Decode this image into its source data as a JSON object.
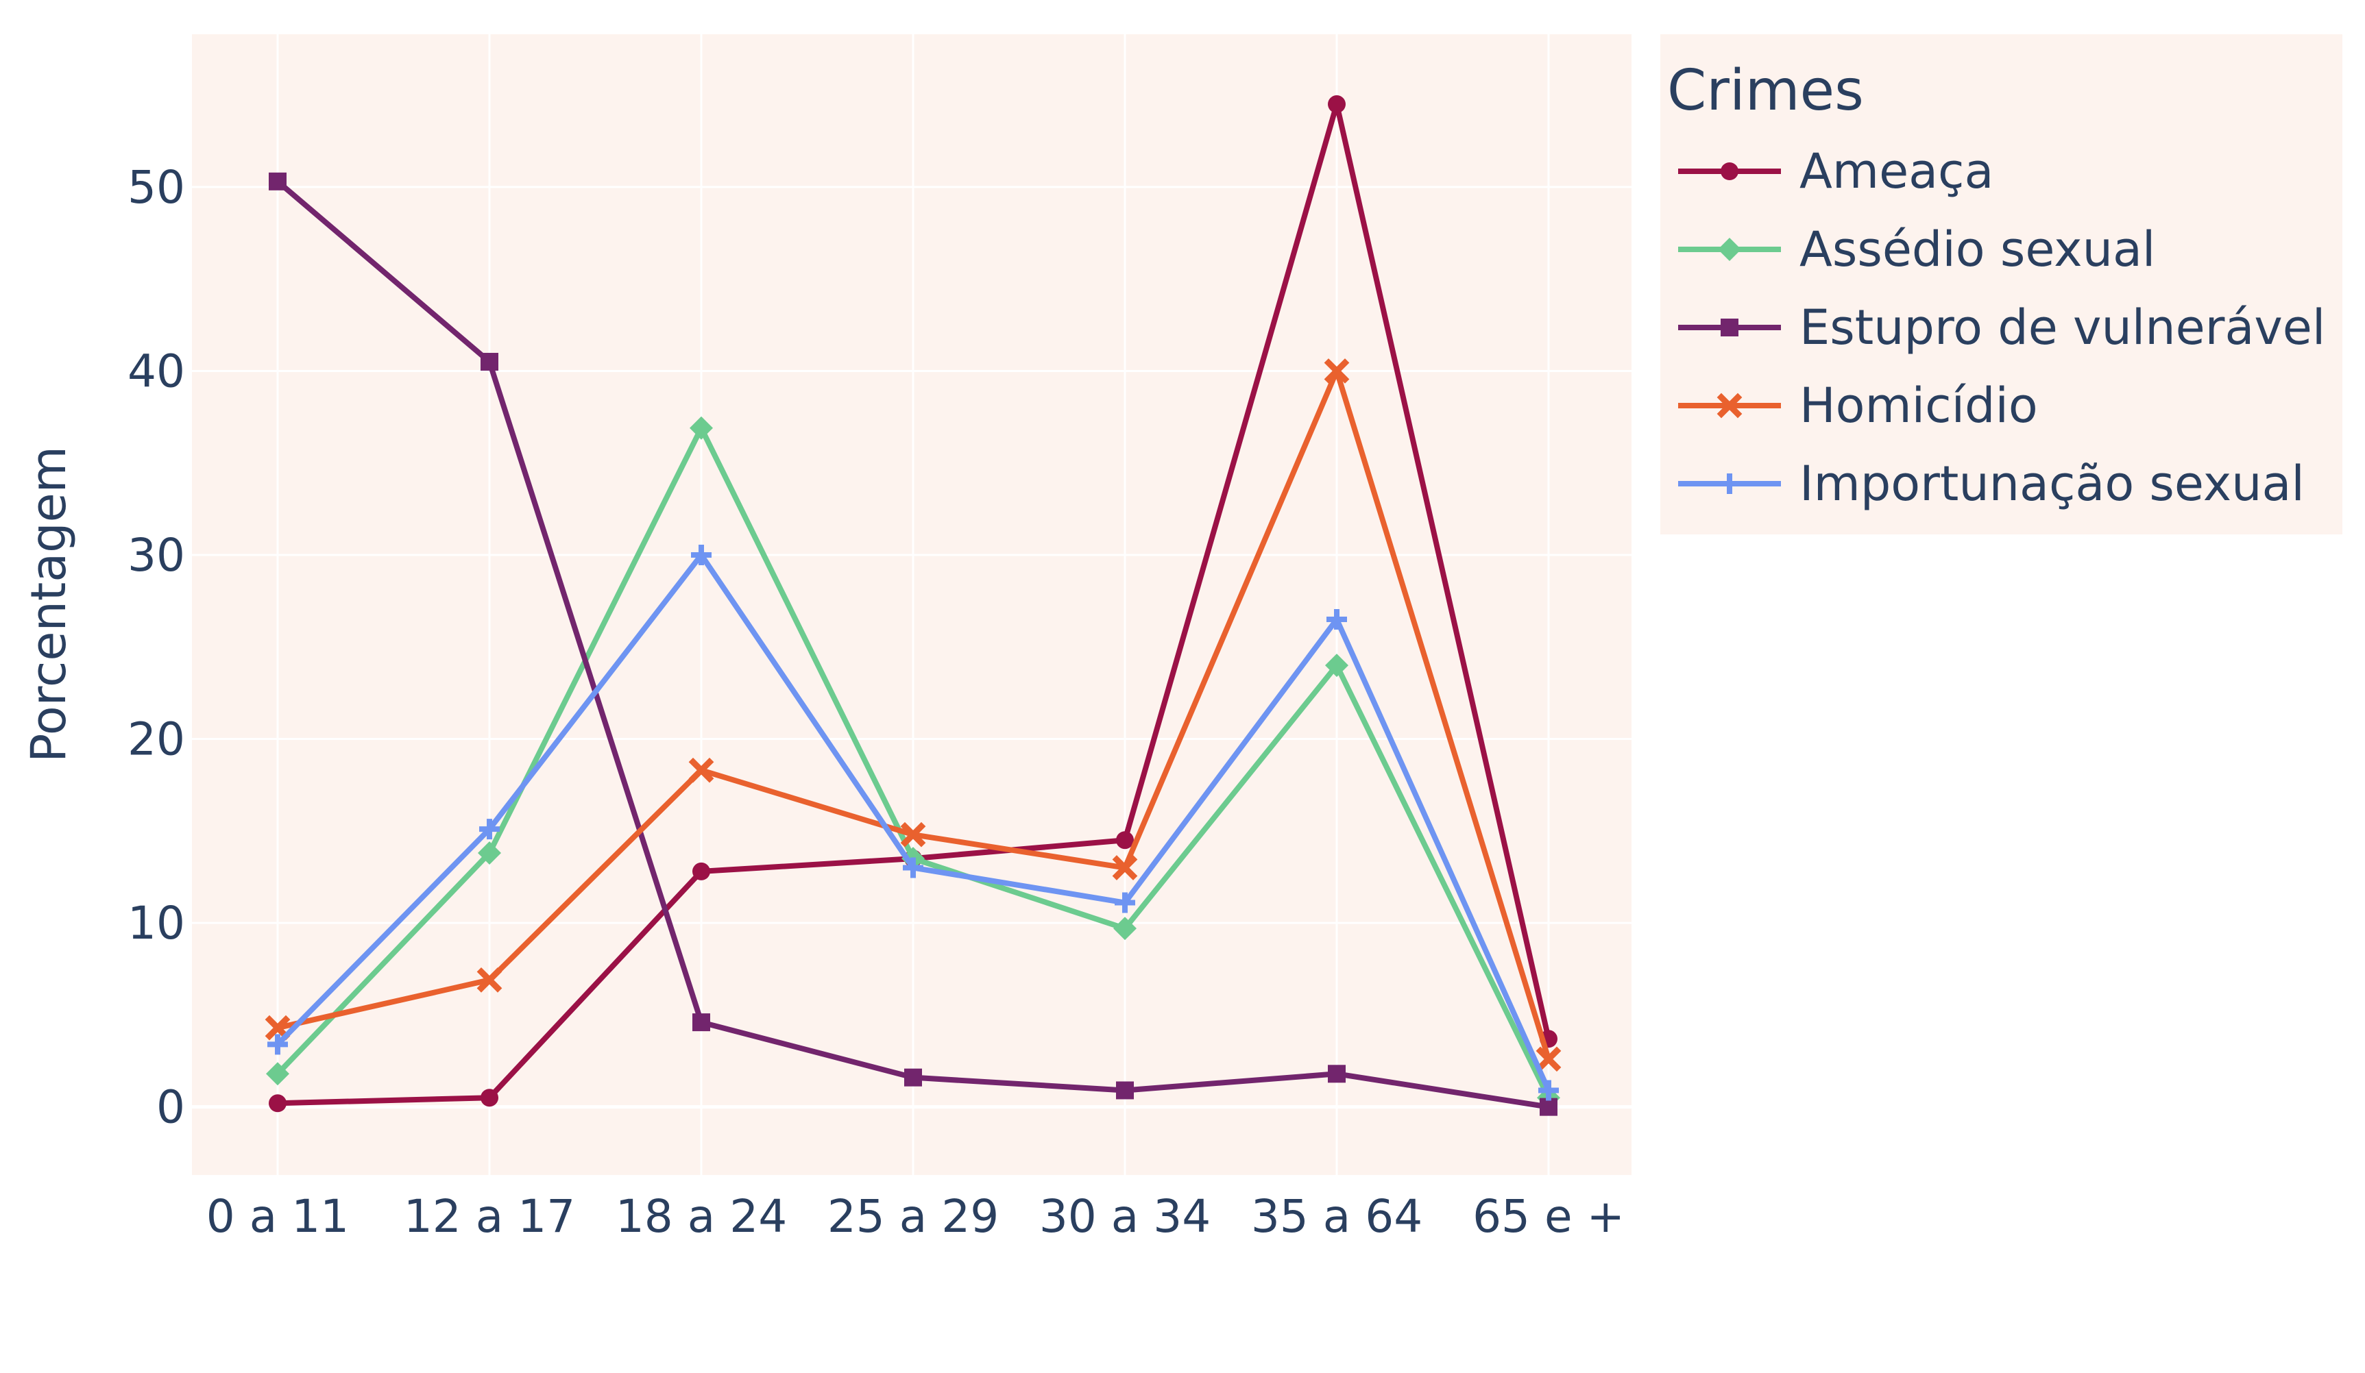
{
  "chart_data": {
    "type": "line",
    "title": "",
    "xlabel": "",
    "ylabel": "Porcentagem",
    "categories": [
      "0 a 11",
      "12 a 17",
      "18 a 24",
      "25 a 29",
      "30 a 34",
      "35 a 64",
      "65 e +"
    ],
    "ylim": [
      -3.7,
      58.3
    ],
    "yticks": [
      0,
      10,
      20,
      30,
      40,
      50
    ],
    "grid": true,
    "legend_title": "Crimes",
    "legend_placement": "top-right, outside plot",
    "plot_background": "#fdf3ee",
    "series": [
      {
        "name": "Ameaça",
        "color": "#9b1146",
        "marker": "circle",
        "values": [
          0.2,
          0.5,
          12.8,
          13.5,
          14.5,
          54.5,
          3.7
        ]
      },
      {
        "name": "Assédio sexual",
        "color": "#6ccb8f",
        "marker": "diamond",
        "values": [
          1.8,
          13.8,
          36.9,
          13.5,
          9.7,
          24.0,
          0.5
        ]
      },
      {
        "name": "Estupro de vulnerável",
        "color": "#72256d",
        "marker": "square",
        "values": [
          50.3,
          40.5,
          4.6,
          1.6,
          0.9,
          1.8,
          0.0
        ]
      },
      {
        "name": "Homicídio",
        "color": "#e9612e",
        "marker": "x",
        "values": [
          4.3,
          6.9,
          18.3,
          14.8,
          13.0,
          40.0,
          2.6
        ]
      },
      {
        "name": "Importunação sexual",
        "color": "#6e94f2",
        "marker": "cross",
        "values": [
          3.4,
          15.1,
          30.0,
          13.0,
          11.1,
          26.5,
          0.9
        ]
      }
    ]
  }
}
